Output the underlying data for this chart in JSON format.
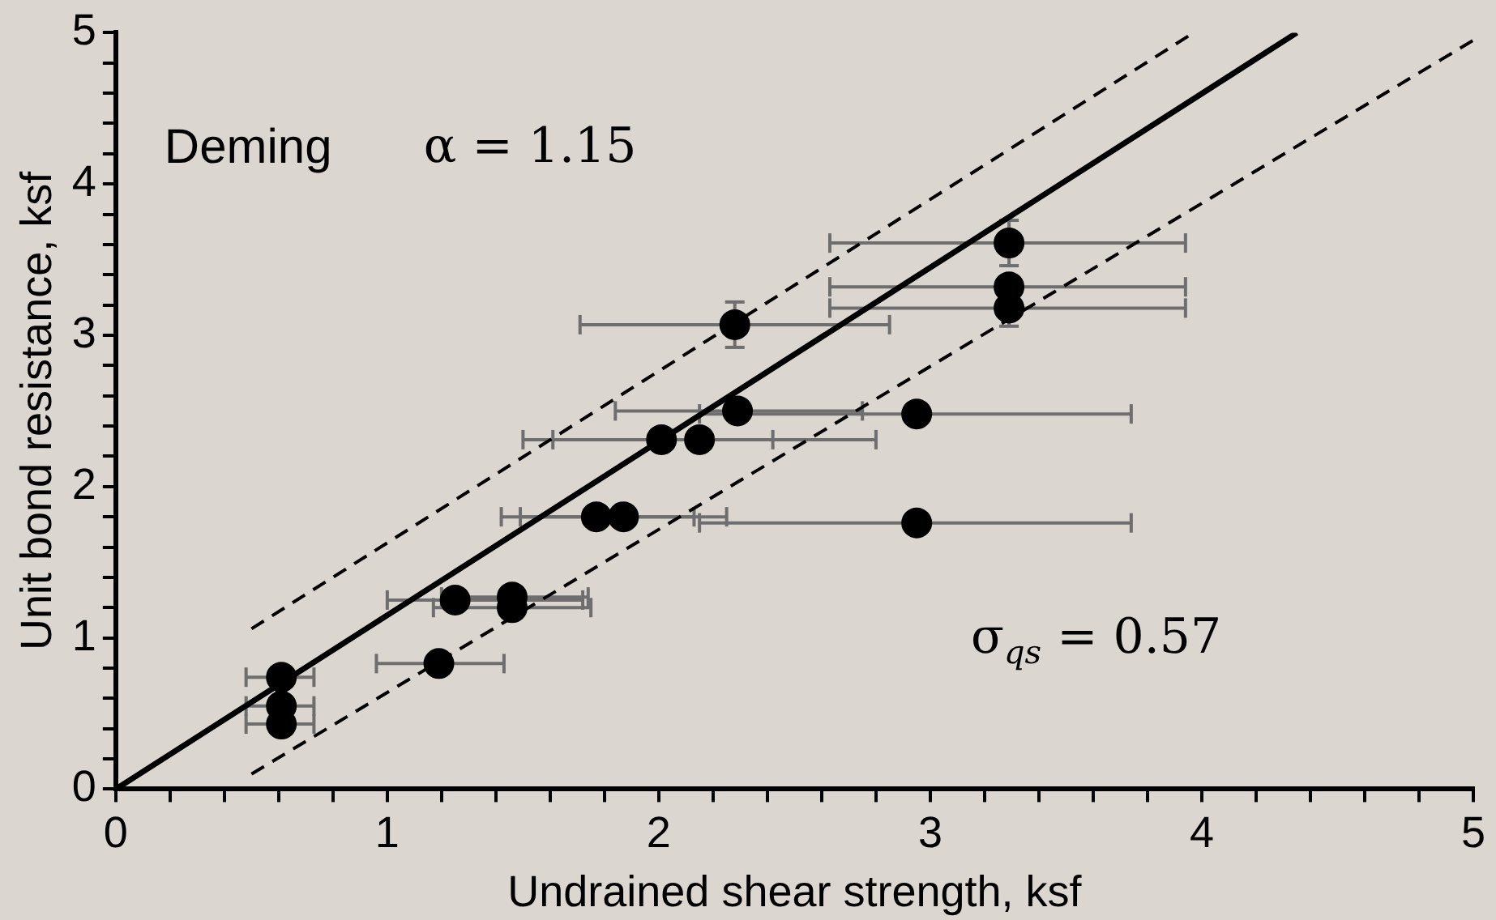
{
  "chart_data": {
    "type": "scatter",
    "xlabel": "Undrained shear strength, ksf",
    "ylabel": "Unit bond resistance, ksf",
    "xlim": [
      0,
      5
    ],
    "ylim": [
      0,
      5
    ],
    "xticks": [
      0,
      {
        "value": 0.2,
        "label": null
      },
      {
        "value": 0.4,
        "label": null
      },
      {
        "value": 0.6,
        "label": null
      },
      {
        "value": 0.8,
        "label": null
      },
      1,
      {
        "value": 1.2,
        "label": null
      },
      {
        "value": 1.4,
        "label": null
      },
      {
        "value": 1.6,
        "label": null
      },
      {
        "value": 1.8,
        "label": null
      },
      2,
      {
        "value": 2.2,
        "label": null
      },
      {
        "value": 2.4,
        "label": null
      },
      {
        "value": 2.6,
        "label": null
      },
      {
        "value": 2.8,
        "label": null
      },
      3,
      {
        "value": 3.2,
        "label": null
      },
      {
        "value": 3.4,
        "label": null
      },
      {
        "value": 3.6,
        "label": null
      },
      {
        "value": 3.8,
        "label": null
      },
      4,
      {
        "value": 4.2,
        "label": null
      },
      {
        "value": 4.4,
        "label": null
      },
      {
        "value": 4.6,
        "label": null
      },
      {
        "value": 4.8,
        "label": null
      },
      5
    ],
    "yticks": [
      0,
      {
        "value": 0.2,
        "label": null
      },
      {
        "value": 0.4,
        "label": null
      },
      {
        "value": 0.6,
        "label": null
      },
      {
        "value": 0.8,
        "label": null
      },
      1,
      {
        "value": 1.2,
        "label": null
      },
      {
        "value": 1.4,
        "label": null
      },
      {
        "value": 1.6,
        "label": null
      },
      {
        "value": 1.8,
        "label": null
      },
      2,
      {
        "value": 2.2,
        "label": null
      },
      {
        "value": 2.4,
        "label": null
      },
      {
        "value": 2.6,
        "label": null
      },
      {
        "value": 2.8,
        "label": null
      },
      3,
      {
        "value": 3.2,
        "label": null
      },
      {
        "value": 3.4,
        "label": null
      },
      {
        "value": 3.6,
        "label": null
      },
      {
        "value": 3.8,
        "label": null
      },
      4,
      {
        "value": 4.2,
        "label": null
      },
      {
        "value": 4.4,
        "label": null
      },
      {
        "value": 4.6,
        "label": null
      },
      {
        "value": 4.8,
        "label": null
      },
      5
    ],
    "grid": false,
    "legend": false,
    "annotations": [
      "Deming",
      "α = 1.15",
      "σ$_{qs}$ = 0.57"
    ],
    "series": [
      {
        "type": "scatter",
        "marker": "circle",
        "color": "#000000",
        "x": [
          0.61,
          0.61,
          0.61,
          1.19,
          1.25,
          1.46,
          1.46,
          1.77,
          1.87,
          2.01,
          2.15,
          2.29,
          2.95,
          2.28,
          2.95,
          3.29,
          3.29,
          3.29
        ],
        "values": [
          0.74,
          0.55,
          0.43,
          0.83,
          1.25,
          1.27,
          1.2,
          1.8,
          1.8,
          2.31,
          2.31,
          2.5,
          2.48,
          3.07,
          1.76,
          3.61,
          3.32,
          3.18
        ],
        "xerrors": [
          [
            0.48,
            0.73
          ],
          [
            0.48,
            0.73
          ],
          [
            0.48,
            0.73
          ],
          [
            0.96,
            1.43
          ],
          [
            1.0,
            1.72
          ],
          [
            1.2,
            1.74
          ],
          [
            1.17,
            1.75
          ],
          [
            1.42,
            2.13
          ],
          [
            1.49,
            2.25
          ],
          [
            1.5,
            2.42
          ],
          [
            1.61,
            2.8
          ],
          [
            1.84,
            2.75
          ],
          [
            2.15,
            3.74
          ],
          [
            1.71,
            2.85
          ],
          [
            2.15,
            3.74
          ],
          [
            2.63,
            3.94
          ],
          [
            2.63,
            3.94
          ],
          [
            2.63,
            3.94
          ]
        ],
        "errors": [
          null,
          null,
          null,
          null,
          null,
          null,
          null,
          null,
          null,
          null,
          null,
          0.07,
          0.07,
          0.15,
          null,
          0.15,
          null,
          0.12
        ]
      },
      {
        "type": "line",
        "color": "#000000",
        "line_style": "solid",
        "x": [
          0,
          4.35
        ],
        "values": [
          0,
          5
        ]
      },
      {
        "type": "line",
        "color": "#000000",
        "line_style": "dashed",
        "x": [
          0.5,
          3.97
        ],
        "values": [
          1.06,
          5
        ]
      },
      {
        "type": "line",
        "color": "#000000",
        "line_style": "dashed",
        "x": [
          0.5,
          5
        ],
        "values": [
          0.1,
          4.95
        ]
      }
    ]
  }
}
